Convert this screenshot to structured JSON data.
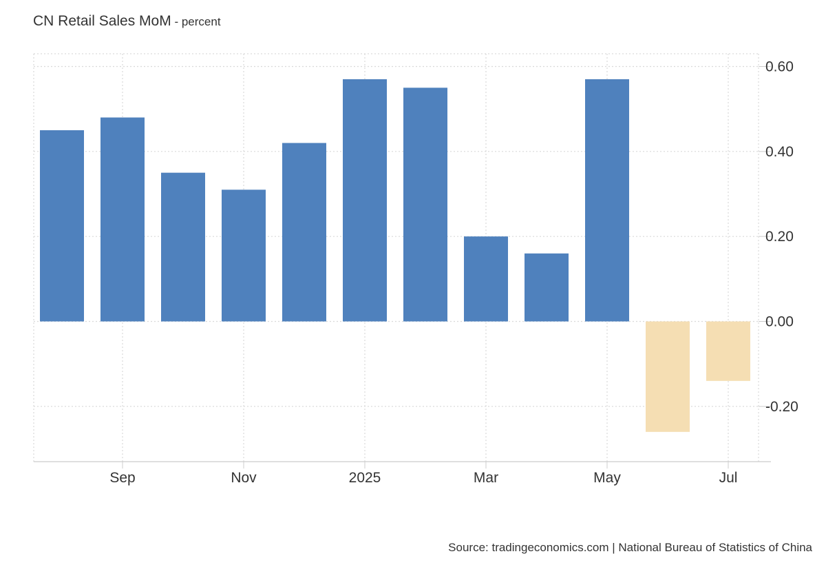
{
  "chart_data": {
    "type": "bar",
    "title": "CN Retail Sales MoM",
    "unit": "percent",
    "x": [
      "2024-08",
      "2024-09",
      "2024-10",
      "2024-11",
      "2024-12",
      "2025-01",
      "2025-02",
      "2025-03",
      "2025-04",
      "2025-05",
      "2025-06",
      "2025-07"
    ],
    "values": [
      0.45,
      0.48,
      0.35,
      0.31,
      0.42,
      0.57,
      0.55,
      0.2,
      0.16,
      0.57,
      -0.26,
      -0.14
    ],
    "x_tick_labels": [
      {
        "month": "2024-09",
        "label": "Sep"
      },
      {
        "month": "2024-11",
        "label": "Nov"
      },
      {
        "month": "2025-01",
        "label": "2025"
      },
      {
        "month": "2025-03",
        "label": "Mar"
      },
      {
        "month": "2025-05",
        "label": "May"
      },
      {
        "month": "2025-07",
        "label": "Jul"
      }
    ],
    "y_ticks": [
      0.6,
      0.4,
      0.2,
      0.0,
      -0.2
    ],
    "y_tick_labels": [
      "0.60",
      "0.40",
      "0.20",
      "0.00",
      "-0.20"
    ],
    "ylim": [
      -0.33,
      0.63
    ],
    "y_axis_position": "right",
    "grid": true,
    "colors": {
      "positive": "#4f81bd",
      "negative": "#f5deb3",
      "grid": "#d9d9d9",
      "axis": "#cccccc"
    }
  },
  "source": "Source: tradingeconomics.com | National Bureau of Statistics of China"
}
